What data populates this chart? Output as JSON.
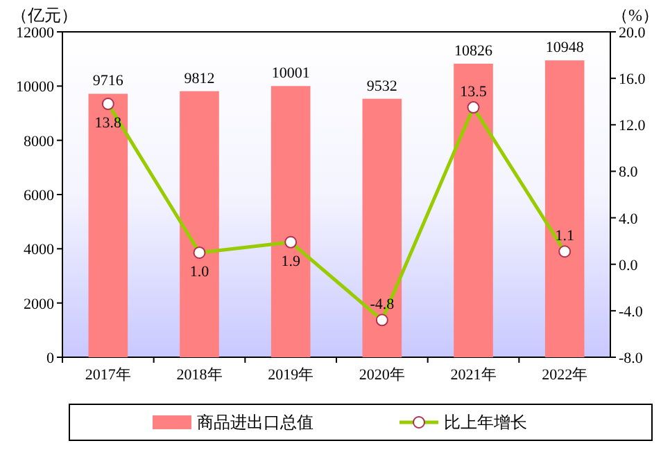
{
  "chart_data": {
    "type": "bar",
    "ylabel": "（亿元）",
    "y2label": "（%）",
    "categories": [
      "2017年",
      "2018年",
      "2019年",
      "2020年",
      "2021年",
      "2022年"
    ],
    "series": [
      {
        "name": "商品进出口总值",
        "color": "#ff8080",
        "values": [
          9716,
          9812,
          10001,
          9532,
          10826,
          10948
        ]
      },
      {
        "name": "比上年增长",
        "type": "line",
        "axis": "y2",
        "color": "#99cc00",
        "marker": "circle",
        "values": [
          13.8,
          1.0,
          1.9,
          -4.8,
          13.5,
          1.1
        ],
        "value_labels": [
          "13.8",
          "1.0",
          "1.9",
          "-4.8",
          "13.5",
          "1.1"
        ]
      }
    ],
    "ylim": [
      0,
      12000
    ],
    "yticks": [
      0,
      2000,
      4000,
      6000,
      8000,
      10000,
      12000
    ],
    "y2lim": [
      -8,
      20
    ],
    "y2ticks": [
      {
        "value": -8,
        "label": "-8.0"
      },
      {
        "value": -4,
        "label": "-4.0"
      },
      {
        "value": 0,
        "label": "0.0"
      },
      {
        "value": 4,
        "label": "4.0"
      },
      {
        "value": 8,
        "label": "8.0"
      },
      {
        "value": 12,
        "label": "12.0"
      },
      {
        "value": 16,
        "label": "16.0"
      },
      {
        "value": 20,
        "label": "20.0"
      }
    ],
    "data_labels": true,
    "legend": "bottom",
    "grid": false
  }
}
